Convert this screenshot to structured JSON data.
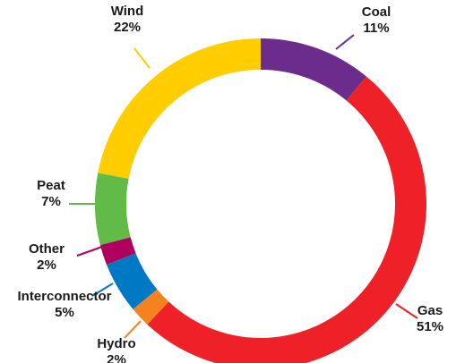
{
  "chart_data": {
    "type": "pie",
    "title": "",
    "donut": true,
    "labels_position": "outside with leader lines",
    "slices": [
      {
        "name": "Coal",
        "value": 11,
        "label": "11%",
        "color": "#6b2c8c"
      },
      {
        "name": "Gas",
        "value": 51,
        "label": "51%",
        "color": "#ee2128"
      },
      {
        "name": "Hydro",
        "value": 2,
        "label": "2%",
        "color": "#f4821f"
      },
      {
        "name": "Interconnector",
        "value": 5,
        "label": "5%",
        "color": "#0079c4"
      },
      {
        "name": "Other",
        "value": 2,
        "label": "2%",
        "color": "#b0005e"
      },
      {
        "name": "Peat",
        "value": 7,
        "label": "7%",
        "color": "#62bb46"
      },
      {
        "name": "Wind",
        "value": 22,
        "label": "22%",
        "color": "#ffcd00"
      }
    ]
  }
}
